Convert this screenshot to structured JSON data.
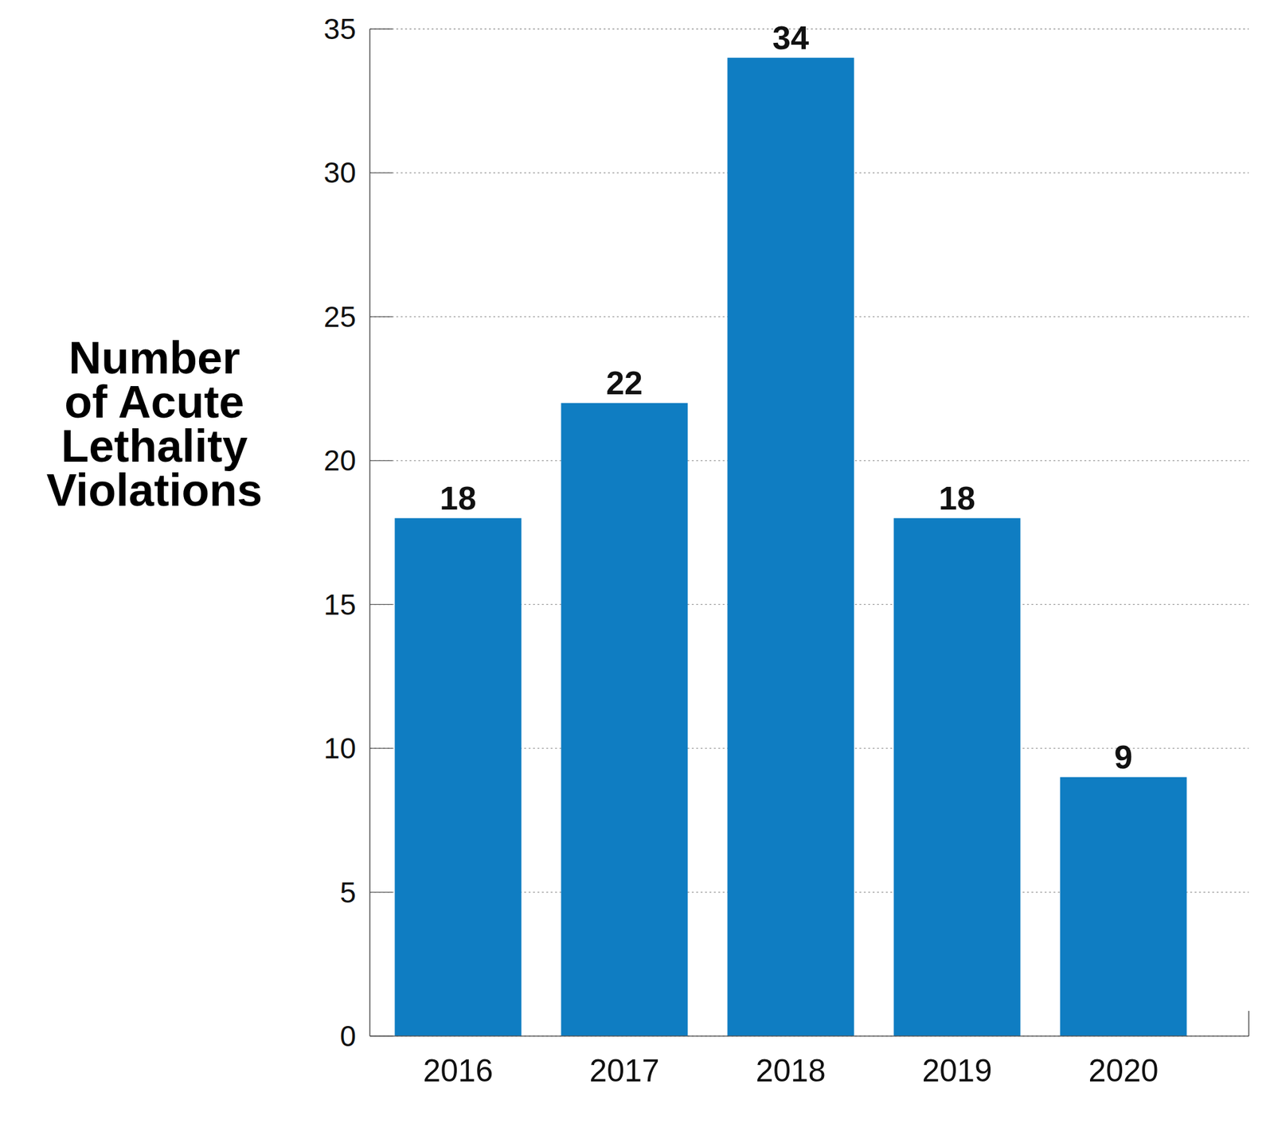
{
  "chart_data": {
    "type": "bar",
    "y_label": "Number of Acute Lethality Violations",
    "categories": [
      "2016",
      "2017",
      "2018",
      "2019",
      "2020"
    ],
    "values": [
      18,
      22,
      34,
      18,
      9
    ],
    "color": "#0f7dc2",
    "ylim": [
      0,
      35
    ],
    "yticks": [
      0,
      5,
      10,
      15,
      20,
      25,
      30,
      35
    ],
    "grid": true,
    "data_labels": true
  }
}
